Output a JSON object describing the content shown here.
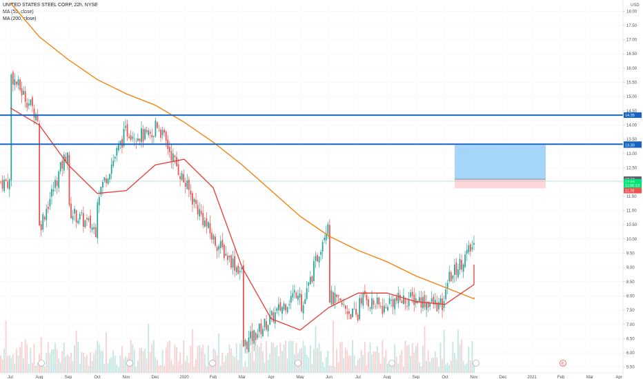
{
  "legend": {
    "symbol_title": "UNITED STATES STEEL CORP, 22h, NYSE",
    "ma50_label": "MA (50, close)",
    "ma200_label": "MA (200, close)"
  },
  "currency_label": "USD",
  "colors": {
    "up": "#26a69a",
    "down": "#ef5350",
    "ma50": "#e53935",
    "ma200": "#f57c00",
    "hline": "#1565c0",
    "target_zone": "#90caf9",
    "stop_zone": "#ffcdd2",
    "axis_text": "#4a4e5a"
  },
  "chart_data": {
    "type": "candlestick",
    "symbol": "UNITED STATES STEEL CORP",
    "interval": "22h",
    "exchange": "NYSE",
    "y_axis": {
      "side": "right",
      "ticks": [
        "18.00",
        "17.50",
        "17.00",
        "16.50",
        "16.00",
        "15.50",
        "15.00",
        "14.50",
        "14.00",
        "13.50",
        "13.00",
        "12.50",
        "12.00",
        "11.50",
        "11.00",
        "10.50",
        "10.00",
        "9.50",
        "9.00",
        "8.50",
        "8.00",
        "7.50",
        "7.00",
        "6.50",
        "6.00",
        "5.50"
      ],
      "range": [
        5.3,
        18.2
      ]
    },
    "x_axis": {
      "ticks": [
        "Jul",
        "Aug",
        "Sep",
        "Oct",
        "Nov",
        "Dec",
        "2020",
        "Feb",
        "Mar",
        "Apr",
        "May",
        "Jun",
        "Jul",
        "Aug",
        "Sep",
        "Oct",
        "Nov",
        "Dec",
        "2021",
        "Feb",
        "Mar",
        "Apr"
      ]
    },
    "price_path": [
      {
        "x": "Jul",
        "y": 15.0
      },
      {
        "x": "Jul",
        "y": 15.8
      },
      {
        "x": "Aug",
        "y": 14.2
      },
      {
        "x": "Aug",
        "y": 11.2
      },
      {
        "x": "Aug",
        "y": 10.4
      },
      {
        "x": "Sep",
        "y": 13.2
      },
      {
        "x": "Sep",
        "y": 11.0
      },
      {
        "x": "Oct",
        "y": 10.3
      },
      {
        "x": "Oct",
        "y": 11.5
      },
      {
        "x": "Nov",
        "y": 13.8
      },
      {
        "x": "Dec",
        "y": 13.5
      },
      {
        "x": "Dec",
        "y": 14.2
      },
      {
        "x": "2020",
        "y": 12.0
      },
      {
        "x": "Feb",
        "y": 10.0
      },
      {
        "x": "Mar",
        "y": 8.8
      },
      {
        "x": "Mar",
        "y": 6.2
      },
      {
        "x": "Apr",
        "y": 7.2
      },
      {
        "x": "May",
        "y": 8.3
      },
      {
        "x": "May",
        "y": 7.3
      },
      {
        "x": "Jun",
        "y": 10.8
      },
      {
        "x": "Jun",
        "y": 8.0
      },
      {
        "x": "Jul",
        "y": 7.2
      },
      {
        "x": "Jul",
        "y": 8.0
      },
      {
        "x": "Aug",
        "y": 7.5
      },
      {
        "x": "Aug",
        "y": 7.8
      },
      {
        "x": "Sep",
        "y": 7.9
      },
      {
        "x": "Oct",
        "y": 7.6
      },
      {
        "x": "Oct",
        "y": 8.4
      },
      {
        "x": "Nov",
        "y": 9.8
      },
      {
        "x": "Nov",
        "y": 10.9
      },
      {
        "x": "Nov",
        "y": 12.0
      }
    ],
    "ma50_path": [
      {
        "x": "Jul",
        "y": 14.6
      },
      {
        "x": "Aug",
        "y": 14.0
      },
      {
        "x": "Sep",
        "y": 12.6
      },
      {
        "x": "Oct",
        "y": 11.6
      },
      {
        "x": "Nov",
        "y": 11.7
      },
      {
        "x": "Dec",
        "y": 12.6
      },
      {
        "x": "2020",
        "y": 12.8
      },
      {
        "x": "Feb",
        "y": 11.8
      },
      {
        "x": "Mar",
        "y": 9.0
      },
      {
        "x": "Apr",
        "y": 7.2
      },
      {
        "x": "May",
        "y": 6.8
      },
      {
        "x": "Jun",
        "y": 7.6
      },
      {
        "x": "Jul",
        "y": 8.1
      },
      {
        "x": "Aug",
        "y": 8.1
      },
      {
        "x": "Sep",
        "y": 7.8
      },
      {
        "x": "Oct",
        "y": 7.7
      },
      {
        "x": "Nov",
        "y": 8.4
      },
      {
        "x": "Nov",
        "y": 9.1
      }
    ],
    "ma200_path": [
      {
        "x": "Jul",
        "y": 18.3
      },
      {
        "x": "Aug",
        "y": 17.1
      },
      {
        "x": "Sep",
        "y": 16.3
      },
      {
        "x": "Oct",
        "y": 15.6
      },
      {
        "x": "Nov",
        "y": 15.1
      },
      {
        "x": "Dec",
        "y": 14.7
      },
      {
        "x": "2020",
        "y": 14.1
      },
      {
        "x": "Feb",
        "y": 13.4
      },
      {
        "x": "Mar",
        "y": 12.6
      },
      {
        "x": "Apr",
        "y": 11.7
      },
      {
        "x": "May",
        "y": 10.8
      },
      {
        "x": "Jun",
        "y": 10.1
      },
      {
        "x": "Jul",
        "y": 9.6
      },
      {
        "x": "Aug",
        "y": 9.2
      },
      {
        "x": "Sep",
        "y": 8.7
      },
      {
        "x": "Oct",
        "y": 8.3
      },
      {
        "x": "Nov",
        "y": 7.9
      },
      {
        "x": "Nov",
        "y": 7.95
      }
    ],
    "horizontal_lines": [
      {
        "price": 14.35,
        "label": "14.35"
      },
      {
        "price": 13.33,
        "label": "13.33"
      }
    ],
    "price_badges": [
      {
        "label": "13.30",
        "price": 13.3,
        "style": "hline"
      },
      {
        "label": "12.10",
        "price": 12.1,
        "style": "gray"
      },
      {
        "label": "12.03",
        "price": 12.01,
        "style": "up"
      },
      {
        "label": "11:06:13",
        "price": 11.88,
        "style": "up"
      },
      {
        "label": "11.78",
        "price": 11.7,
        "style": "down"
      }
    ],
    "position_tool": {
      "x_start": "Oct",
      "x_end": "2021",
      "target": 13.3,
      "entry": 12.1,
      "stop": 11.78
    },
    "current_price": 12.03,
    "current_price_line": 12.03,
    "event_markers": {
      "row": "bottom",
      "earnings_label": "E"
    },
    "volume": "shown"
  }
}
